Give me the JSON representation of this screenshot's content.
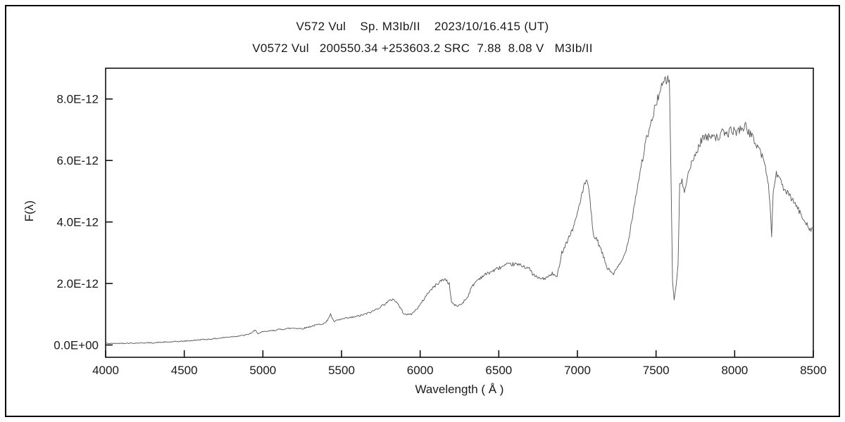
{
  "chart_data": {
    "type": "line",
    "title": "V572 Vul    Sp. M3Ib/II    2023/10/16.415 (UT)",
    "subtitle": "V0572 Vul   200550.34 +253603.2 SRC  7.88  8.08 V   M3Ib/II",
    "xlabel": "Wavelength ( Å )",
    "ylabel": "F(λ)",
    "xlim": [
      4000,
      8500
    ],
    "ylim_e12": [
      -0.4,
      9.0
    ],
    "x_ticks": [
      4000,
      4500,
      5000,
      5500,
      6000,
      6500,
      7000,
      7500,
      8000,
      8500
    ],
    "y_ticks": [
      {
        "value": 0,
        "label": "0.0E+00"
      },
      {
        "value": 2,
        "label": "2.0E-12"
      },
      {
        "value": 4,
        "label": "4.0E-12"
      },
      {
        "value": 6,
        "label": "6.0E-12"
      },
      {
        "value": 8,
        "label": "8.0E-12"
      }
    ],
    "grid": false,
    "legend": false,
    "line_color": "#555555",
    "flux_unit_scale": 1e-12,
    "noise_seed": 42,
    "noise": {
      "base_e12": 0.015,
      "scale_per_e12": 0.018
    },
    "series": [
      {
        "name": "spectrum",
        "points_e12": [
          [
            4000,
            0.05
          ],
          [
            4060,
            0.05
          ],
          [
            4120,
            0.06
          ],
          [
            4180,
            0.06
          ],
          [
            4240,
            0.07
          ],
          [
            4300,
            0.07
          ],
          [
            4360,
            0.09
          ],
          [
            4420,
            0.1
          ],
          [
            4480,
            0.12
          ],
          [
            4540,
            0.14
          ],
          [
            4600,
            0.17
          ],
          [
            4660,
            0.19
          ],
          [
            4720,
            0.22
          ],
          [
            4780,
            0.26
          ],
          [
            4840,
            0.29
          ],
          [
            4900,
            0.33
          ],
          [
            4930,
            0.4
          ],
          [
            4950,
            0.47
          ],
          [
            4970,
            0.38
          ],
          [
            5000,
            0.42
          ],
          [
            5050,
            0.46
          ],
          [
            5100,
            0.5
          ],
          [
            5150,
            0.53
          ],
          [
            5200,
            0.55
          ],
          [
            5250,
            0.53
          ],
          [
            5300,
            0.6
          ],
          [
            5350,
            0.66
          ],
          [
            5400,
            0.72
          ],
          [
            5430,
            1.0
          ],
          [
            5450,
            0.76
          ],
          [
            5500,
            0.84
          ],
          [
            5550,
            0.88
          ],
          [
            5600,
            0.93
          ],
          [
            5650,
            1.0
          ],
          [
            5700,
            1.1
          ],
          [
            5750,
            1.25
          ],
          [
            5800,
            1.42
          ],
          [
            5830,
            1.5
          ],
          [
            5860,
            1.33
          ],
          [
            5890,
            1.06
          ],
          [
            5920,
            0.98
          ],
          [
            5950,
            1.02
          ],
          [
            6000,
            1.3
          ],
          [
            6050,
            1.7
          ],
          [
            6100,
            1.95
          ],
          [
            6130,
            2.08
          ],
          [
            6160,
            2.15
          ],
          [
            6185,
            1.98
          ],
          [
            6200,
            1.38
          ],
          [
            6230,
            1.26
          ],
          [
            6260,
            1.32
          ],
          [
            6300,
            1.55
          ],
          [
            6330,
            1.9
          ],
          [
            6360,
            2.1
          ],
          [
            6400,
            2.25
          ],
          [
            6450,
            2.38
          ],
          [
            6500,
            2.5
          ],
          [
            6550,
            2.6
          ],
          [
            6600,
            2.63
          ],
          [
            6650,
            2.58
          ],
          [
            6690,
            2.5
          ],
          [
            6720,
            2.28
          ],
          [
            6750,
            2.18
          ],
          [
            6780,
            2.15
          ],
          [
            6810,
            2.2
          ],
          [
            6840,
            2.32
          ],
          [
            6870,
            2.2
          ],
          [
            6900,
            3.0
          ],
          [
            6950,
            3.55
          ],
          [
            6980,
            3.9
          ],
          [
            7000,
            4.3
          ],
          [
            7020,
            4.75
          ],
          [
            7040,
            5.1
          ],
          [
            7060,
            5.4
          ],
          [
            7080,
            4.7
          ],
          [
            7100,
            3.6
          ],
          [
            7130,
            3.35
          ],
          [
            7160,
            2.95
          ],
          [
            7190,
            2.5
          ],
          [
            7210,
            2.4
          ],
          [
            7230,
            2.32
          ],
          [
            7260,
            2.55
          ],
          [
            7290,
            2.8
          ],
          [
            7320,
            3.3
          ],
          [
            7350,
            4.2
          ],
          [
            7380,
            5.1
          ],
          [
            7410,
            5.95
          ],
          [
            7440,
            6.7
          ],
          [
            7470,
            7.2
          ],
          [
            7500,
            7.9
          ],
          [
            7520,
            8.15
          ],
          [
            7545,
            8.5
          ],
          [
            7570,
            8.65
          ],
          [
            7585,
            8.55
          ],
          [
            7595,
            5.5
          ],
          [
            7605,
            2.1
          ],
          [
            7615,
            1.45
          ],
          [
            7625,
            1.8
          ],
          [
            7640,
            2.6
          ],
          [
            7650,
            5.2
          ],
          [
            7665,
            5.3
          ],
          [
            7680,
            5.05
          ],
          [
            7700,
            5.5
          ],
          [
            7720,
            5.8
          ],
          [
            7750,
            6.2
          ],
          [
            7780,
            6.55
          ],
          [
            7800,
            6.8
          ],
          [
            7830,
            6.72
          ],
          [
            7860,
            6.9
          ],
          [
            7890,
            6.7
          ],
          [
            7920,
            6.9
          ],
          [
            7950,
            6.85
          ],
          [
            7980,
            7.0
          ],
          [
            8010,
            6.92
          ],
          [
            8040,
            7.05
          ],
          [
            8070,
            7.1
          ],
          [
            8100,
            6.85
          ],
          [
            8130,
            6.6
          ],
          [
            8160,
            6.35
          ],
          [
            8190,
            5.9
          ],
          [
            8210,
            5.4
          ],
          [
            8225,
            4.6
          ],
          [
            8235,
            3.5
          ],
          [
            8245,
            5.0
          ],
          [
            8265,
            5.6
          ],
          [
            8285,
            5.4
          ],
          [
            8310,
            5.1
          ],
          [
            8340,
            4.9
          ],
          [
            8370,
            4.7
          ],
          [
            8400,
            4.45
          ],
          [
            8430,
            4.15
          ],
          [
            8460,
            3.95
          ],
          [
            8480,
            3.75
          ],
          [
            8500,
            3.8
          ]
        ]
      }
    ]
  }
}
